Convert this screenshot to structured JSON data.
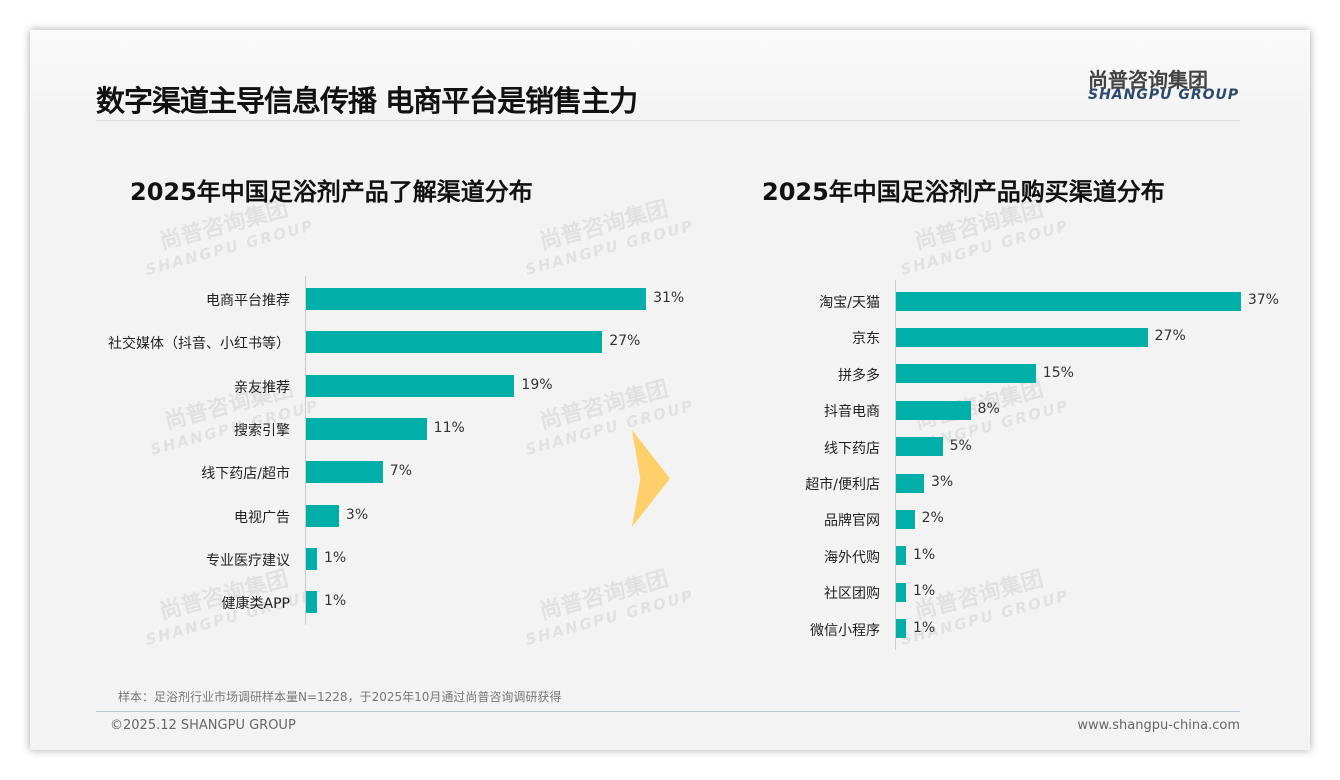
{
  "header": {
    "title": "数字渠道主导信息传播 电商平台是销售主力",
    "logo_cn": "尚普咨询集团",
    "logo_en": "SHANGPU GROUP"
  },
  "watermark": {
    "cn": "尚普咨询集团",
    "en": "SHANGPU GROUP"
  },
  "chart_data": [
    {
      "type": "bar",
      "orientation": "horizontal",
      "title": "2025年中国足浴剂产品了解渠道分布",
      "categories": [
        "电商平台推荐",
        "社交媒体（抖音、小红书等）",
        "亲友推荐",
        "搜索引擎",
        "线下药店/超市",
        "电视广告",
        "专业医疗建议",
        "健康类APP"
      ],
      "values": [
        31,
        27,
        19,
        11,
        7,
        3,
        1,
        1
      ],
      "value_labels": [
        "31%",
        "27%",
        "19%",
        "11%",
        "7%",
        "3%",
        "1%",
        "1%"
      ],
      "unit": "%",
      "color": "#00b0a8"
    },
    {
      "type": "bar",
      "orientation": "horizontal",
      "title": "2025年中国足浴剂产品购买渠道分布",
      "categories": [
        "淘宝/天猫",
        "京东",
        "拼多多",
        "抖音电商",
        "线下药店",
        "超市/便利店",
        "品牌官网",
        "海外代购",
        "社区团购",
        "微信小程序"
      ],
      "values": [
        37,
        27,
        15,
        8,
        5,
        3,
        2,
        1,
        1,
        1
      ],
      "value_labels": [
        "37%",
        "27%",
        "15%",
        "8%",
        "5%",
        "3%",
        "2%",
        "1%",
        "1%",
        "1%"
      ],
      "unit": "%",
      "color": "#00b0a8"
    }
  ],
  "footer": {
    "note": "样本：足浴剂行业市场调研样本量N=1228，于2025年10月通过尚普咨询调研获得",
    "copyright": "©2025.12 SHANGPU GROUP",
    "url": "www.shangpu-china.com"
  }
}
